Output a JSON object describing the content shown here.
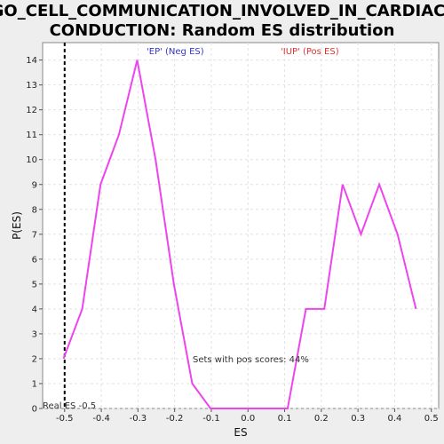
{
  "chart_data": {
    "type": "line",
    "title_line1": "GO_CELL_COMMUNICATION_INVOLVED_IN_CARDIAC_",
    "title_line2": "CONDUCTION: Random ES distribution",
    "xlabel": "ES",
    "ylabel": "P(ES)",
    "xlim": [
      -0.56,
      0.52
    ],
    "ylim": [
      0,
      14.7
    ],
    "xticks": [
      -0.5,
      -0.4,
      -0.3,
      -0.2,
      -0.1,
      0.0,
      0.1,
      0.2,
      0.3,
      0.4,
      0.5
    ],
    "xtick_labels": [
      "-0.5",
      "-0.4",
      "-0.3",
      "-0.2",
      "-0.1",
      "0.0",
      "0.1",
      "0.2",
      "0.3",
      "0.4",
      "0.5"
    ],
    "yticks": [
      0,
      1,
      2,
      3,
      4,
      5,
      6,
      7,
      8,
      9,
      10,
      11,
      12,
      13,
      14
    ],
    "ytick_labels": [
      "0",
      "1",
      "2",
      "3",
      "4",
      "5",
      "6",
      "7",
      "8",
      "9",
      "10",
      "11",
      "12",
      "13",
      "14"
    ],
    "grid": true,
    "line_color": "#ee44ee",
    "series": [
      {
        "x": [
          -0.503,
          -0.452,
          -0.402,
          -0.352,
          -0.302,
          -0.252,
          -0.202,
          -0.152,
          -0.102,
          -0.052,
          -0.002,
          0.048,
          0.108,
          0.158,
          0.208,
          0.258,
          0.308,
          0.358,
          0.408,
          0.458
        ],
        "y": [
          2,
          4,
          9,
          11,
          14,
          10,
          5,
          1,
          0,
          0,
          0,
          0,
          0,
          4,
          4,
          9,
          7,
          9,
          7,
          4
        ]
      }
    ],
    "real_es": -0.5,
    "real_es_label": "Real ES -0.5",
    "neg_label": "'EP' (Neg ES)",
    "pos_label": "'IUP' (Pos ES)",
    "neg_label_color": "#3333cc",
    "pos_label_color": "#dd3333",
    "pos_scores_text": "Sets with pos scores: 44%"
  }
}
